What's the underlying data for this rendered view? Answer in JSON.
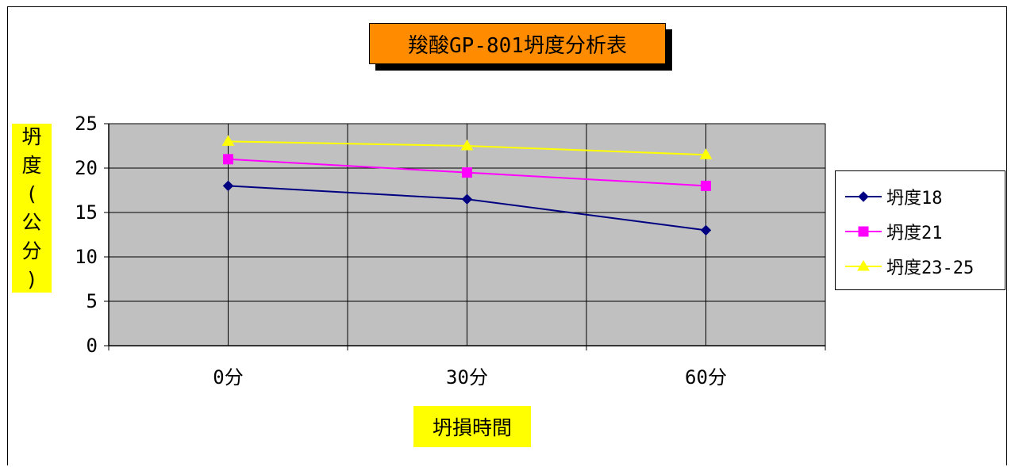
{
  "chart_data": {
    "type": "line",
    "title": "羧酸GP-801坍度分析表",
    "xlabel": "坍損時間",
    "ylabel": "坍度(公分)",
    "categories": [
      "0分",
      "30分",
      "60分"
    ],
    "ylim": [
      0,
      25
    ],
    "yticks": [
      0,
      5,
      10,
      15,
      20,
      25
    ],
    "grid": true,
    "legend_position": "right",
    "series": [
      {
        "name": "坍度18",
        "values": [
          18,
          16.5,
          13
        ],
        "color": "#000080",
        "marker": "diamond"
      },
      {
        "name": "坍度21",
        "values": [
          21,
          19.5,
          18
        ],
        "color": "#ff00ff",
        "marker": "square"
      },
      {
        "name": "坍度23-25",
        "values": [
          23,
          22.5,
          21.5
        ],
        "color": "#ffff00",
        "marker": "triangle"
      }
    ]
  },
  "colors": {
    "plot_background": "#c0c0c0",
    "title_background": "#ff8c00",
    "label_background": "#ffff00"
  }
}
